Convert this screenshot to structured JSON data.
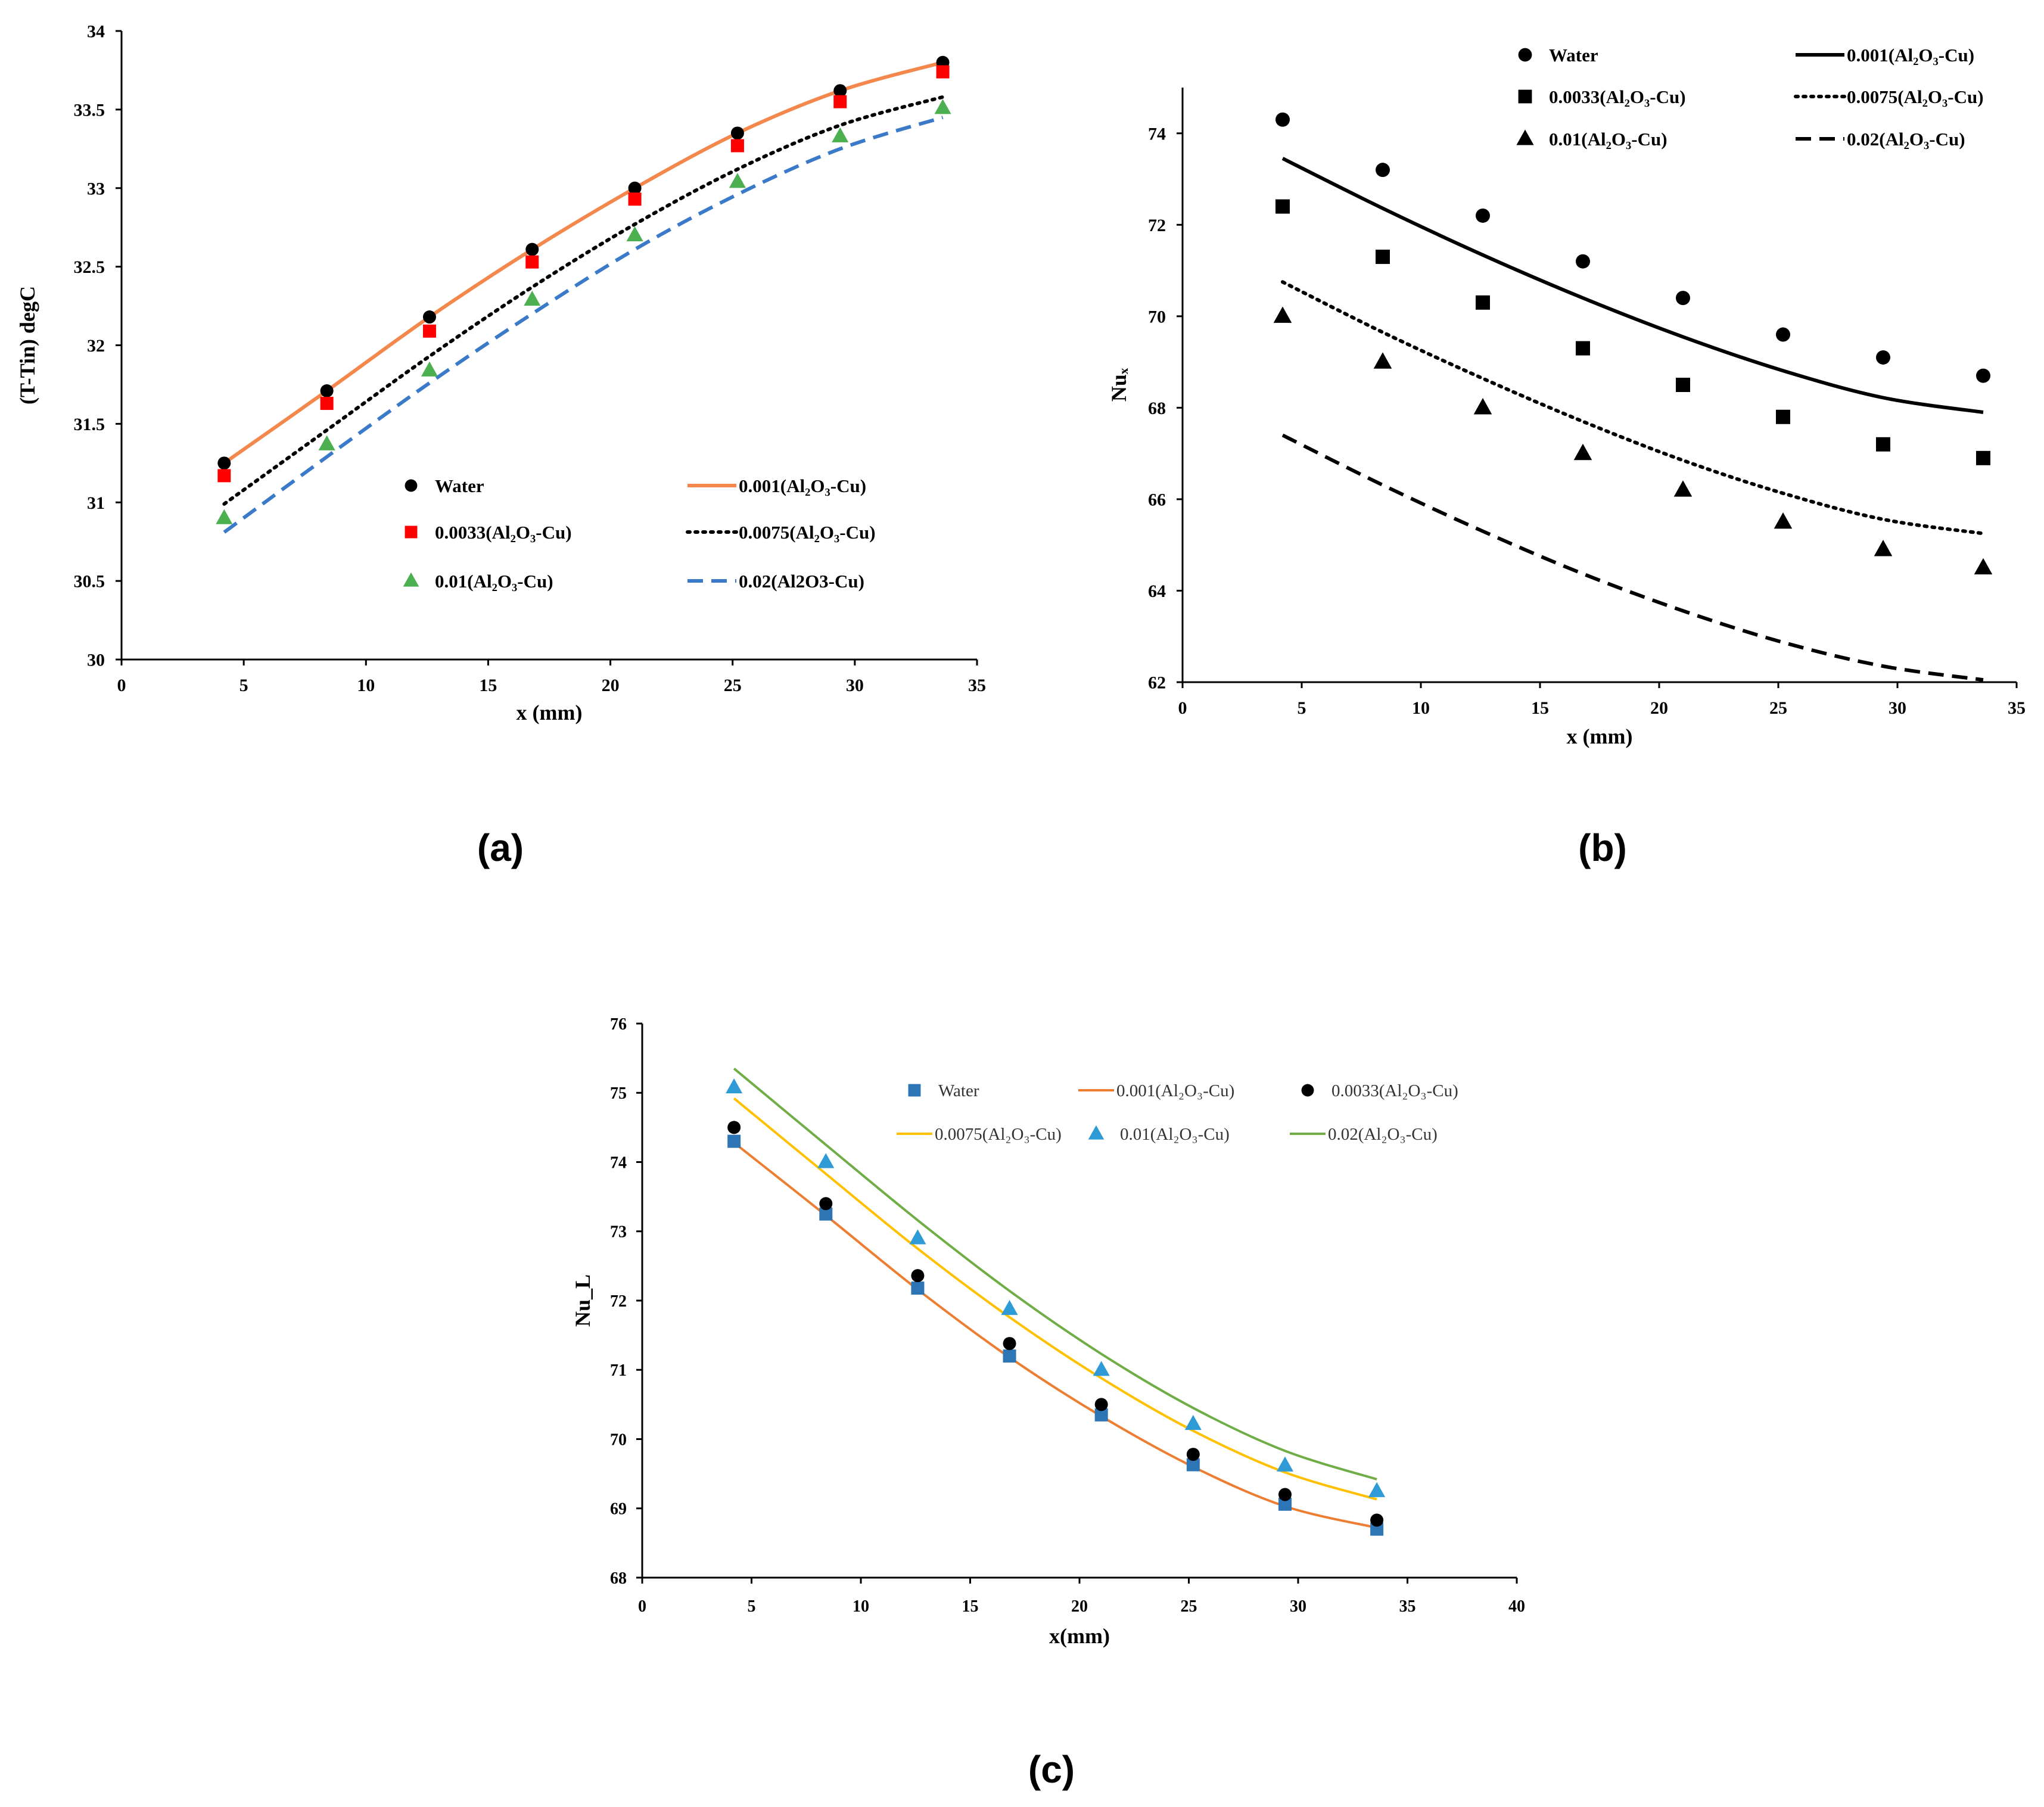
{
  "figure": {
    "captions": [
      "(a)",
      "(b)",
      "(c)"
    ]
  },
  "chart_data": [
    {
      "id": "a",
      "type": "line",
      "title": "",
      "xlabel": "x (mm)",
      "ylabel": "(T-Tin) degC",
      "xlim": [
        0,
        35
      ],
      "ylim": [
        30,
        34
      ],
      "xticks": [
        0,
        5,
        10,
        15,
        20,
        25,
        30,
        35
      ],
      "yticks": [
        30,
        30.5,
        31,
        31.5,
        32,
        32.5,
        33,
        33.5,
        34
      ],
      "xtick_labels": [
        "0",
        "5",
        "10",
        "15",
        "20",
        "25",
        "30",
        "35"
      ],
      "ytick_labels": [
        "30",
        "30.5",
        "31",
        "31.5",
        "32",
        "32.5",
        "33",
        "33.5",
        "34"
      ],
      "x": [
        4.2,
        8.4,
        12.6,
        16.8,
        21.0,
        25.2,
        29.4,
        33.6
      ],
      "grid": false,
      "legend_position": "center-right",
      "series": [
        {
          "name": "Water",
          "kind": "marker",
          "marker": "circle",
          "color": "#000000",
          "values": [
            31.25,
            31.71,
            32.18,
            32.61,
            33.0,
            33.35,
            33.62,
            33.8
          ]
        },
        {
          "name": "0.0033(Al₂O₃-Cu)",
          "kind": "marker",
          "marker": "square",
          "color": "#ff0000",
          "values": [
            31.17,
            31.63,
            32.09,
            32.53,
            32.93,
            33.27,
            33.55,
            33.74
          ]
        },
        {
          "name": "0.01(Al₂O₃-Cu)",
          "kind": "marker",
          "marker": "triangle",
          "color": "#4caf50",
          "values": [
            30.9,
            31.37,
            31.84,
            32.29,
            32.7,
            33.04,
            33.33,
            33.51
          ]
        },
        {
          "name": "0.001(Al₂O₃-Cu)",
          "kind": "line",
          "dash": "solid",
          "color": "#f4874b",
          "values": [
            31.25,
            31.71,
            32.18,
            32.61,
            33.0,
            33.35,
            33.62,
            33.8
          ]
        },
        {
          "name": "0.0075(Al₂O₃-Cu)",
          "kind": "line",
          "dash": "dotted",
          "color": "#000000",
          "values": [
            30.99,
            31.46,
            31.93,
            32.37,
            32.77,
            33.12,
            33.4,
            33.58
          ]
        },
        {
          "name": "0.02(Al2O3-Cu)",
          "kind": "line",
          "dash": "dashed",
          "color": "#3b7ac9",
          "values": [
            30.81,
            31.29,
            31.76,
            32.2,
            32.61,
            32.96,
            33.25,
            33.45
          ]
        }
      ]
    },
    {
      "id": "b",
      "type": "line",
      "title": "",
      "xlabel": "x (mm)",
      "ylabel": "Nuₓ",
      "xlim": [
        0,
        35
      ],
      "ylim": [
        62,
        75
      ],
      "xticks": [
        0,
        5,
        10,
        15,
        20,
        25,
        30,
        35
      ],
      "yticks": [
        62,
        64,
        66,
        68,
        70,
        72,
        74
      ],
      "xtick_labels": [
        "0",
        "5",
        "10",
        "15",
        "20",
        "25",
        "30",
        "35"
      ],
      "ytick_labels": [
        "62",
        "64",
        "66",
        "68",
        "70",
        "72",
        "74"
      ],
      "x": [
        4.2,
        8.4,
        12.6,
        16.8,
        21.0,
        25.2,
        29.4,
        33.6
      ],
      "grid": false,
      "legend_position": "top",
      "series": [
        {
          "name": "Water",
          "kind": "marker",
          "marker": "circle",
          "color": "#000000",
          "values": [
            74.3,
            73.2,
            72.2,
            71.2,
            70.4,
            69.6,
            69.1,
            68.7
          ]
        },
        {
          "name": "0.0033(Al₂O₃-Cu)",
          "kind": "marker",
          "marker": "square",
          "color": "#000000",
          "values": [
            72.4,
            71.3,
            70.3,
            69.3,
            68.5,
            67.8,
            67.2,
            66.9
          ]
        },
        {
          "name": "0.01(Al₂O₃-Cu)",
          "kind": "marker",
          "marker": "triangle",
          "color": "#000000",
          "values": [
            70.0,
            69.0,
            68.0,
            67.0,
            66.2,
            65.5,
            64.9,
            64.5
          ]
        },
        {
          "name": "0.001(Al₂O₃-Cu)",
          "kind": "line",
          "dash": "solid",
          "color": "#000000",
          "values": [
            73.45,
            72.36,
            71.34,
            70.4,
            69.55,
            68.81,
            68.22,
            67.9
          ]
        },
        {
          "name": "0.0075(Al₂O₃-Cu)",
          "kind": "line",
          "dash": "dotted",
          "color": "#000000",
          "values": [
            70.75,
            69.65,
            68.64,
            67.7,
            66.85,
            66.13,
            65.56,
            65.25
          ]
        },
        {
          "name": "0.02(Al₂O₃-Cu)",
          "kind": "line",
          "dash": "dashed",
          "color": "#000000",
          "values": [
            67.4,
            66.31,
            65.3,
            64.37,
            63.56,
            62.87,
            62.35,
            62.05
          ]
        }
      ]
    },
    {
      "id": "c",
      "type": "line",
      "title": "",
      "xlabel": "x(mm)",
      "ylabel": "Nu_L",
      "xlim": [
        0,
        40
      ],
      "ylim": [
        68,
        76
      ],
      "xticks": [
        0,
        5,
        10,
        15,
        20,
        25,
        30,
        35,
        40
      ],
      "yticks": [
        68,
        69,
        70,
        71,
        72,
        73,
        74,
        75,
        76
      ],
      "xtick_labels": [
        "0",
        "5",
        "10",
        "15",
        "20",
        "25",
        "30",
        "35",
        "40"
      ],
      "ytick_labels": [
        "68",
        "69",
        "70",
        "71",
        "72",
        "73",
        "74",
        "75",
        "76"
      ],
      "x": [
        4.2,
        8.4,
        12.6,
        16.8,
        21.0,
        25.2,
        29.4,
        33.6
      ],
      "grid": false,
      "legend_position": "top-right",
      "series": [
        {
          "name": "Water",
          "kind": "marker",
          "marker": "square",
          "color": "#2e75b6",
          "values": [
            74.3,
            73.25,
            72.18,
            71.2,
            70.35,
            69.63,
            69.06,
            68.7
          ]
        },
        {
          "name": "0.001(Al₂O₃-Cu)",
          "kind": "line",
          "dash": "solid",
          "color": "#ed7d31",
          "values": [
            74.28,
            73.23,
            72.16,
            71.18,
            70.33,
            69.6,
            69.03,
            68.72
          ]
        },
        {
          "name": "0.0033(Al₂O₃-Cu)",
          "kind": "marker",
          "marker": "circle",
          "color": "#000000",
          "values": [
            74.5,
            73.4,
            72.36,
            71.38,
            70.5,
            69.78,
            69.2,
            68.83
          ]
        },
        {
          "name": "0.0075(Al₂O₃-Cu)",
          "kind": "line",
          "dash": "solid",
          "color": "#ffc000",
          "values": [
            74.92,
            73.83,
            72.75,
            71.76,
            70.88,
            70.12,
            69.52,
            69.13
          ]
        },
        {
          "name": "0.01(Al₂O₃-Cu)",
          "kind": "marker",
          "marker": "triangle",
          "color": "#2e9bd6",
          "values": [
            75.08,
            74.0,
            72.9,
            71.88,
            71.0,
            70.22,
            69.62,
            69.25
          ]
        },
        {
          "name": "0.02(Al₂O₃-Cu)",
          "kind": "line",
          "dash": "solid",
          "color": "#70ad47",
          "values": [
            75.35,
            74.25,
            73.16,
            72.14,
            71.23,
            70.45,
            69.83,
            69.42
          ]
        }
      ]
    }
  ]
}
